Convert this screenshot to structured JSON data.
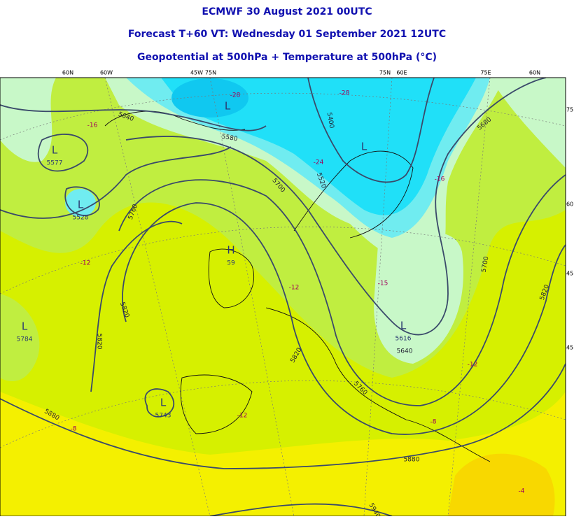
{
  "header": {
    "lines": [
      "ECMWF 30 August 2021 00UTC",
      "Forecast T+60 VT: Wednesday 01 September 2021 12UTC",
      "Geopotential at 500hPa + Temperature at 500hPa (°C)"
    ]
  },
  "graticule_top": [
    "60N",
    "60W",
    "45W",
    "75N",
    "75N",
    "60E",
    "75E",
    "60N"
  ],
  "graticule_right": [
    "75",
    "60",
    "45",
    "45"
  ],
  "pressure_centers": [
    {
      "symbol": "L",
      "value": "5577"
    },
    {
      "symbol": "L",
      "value": "5528"
    },
    {
      "symbol": "H",
      "value": "59"
    },
    {
      "symbol": "L",
      "value": "5784"
    },
    {
      "symbol": "L",
      "value": "5743"
    },
    {
      "symbol": "L",
      "value": "5616"
    },
    {
      "symbol": "L"
    },
    {
      "symbol": "L"
    }
  ],
  "contour_labels": [
    5640,
    5580,
    5400,
    5520,
    5700,
    5760,
    5680,
    5820,
    5820,
    5820,
    5760,
    5640,
    5700,
    5820,
    5880,
    5880,
    5940
  ],
  "temperature_labels": [
    -28,
    -28,
    -16,
    -24,
    -16,
    -12,
    -12,
    -15,
    -12,
    -12,
    -8,
    -8,
    -4
  ]
}
